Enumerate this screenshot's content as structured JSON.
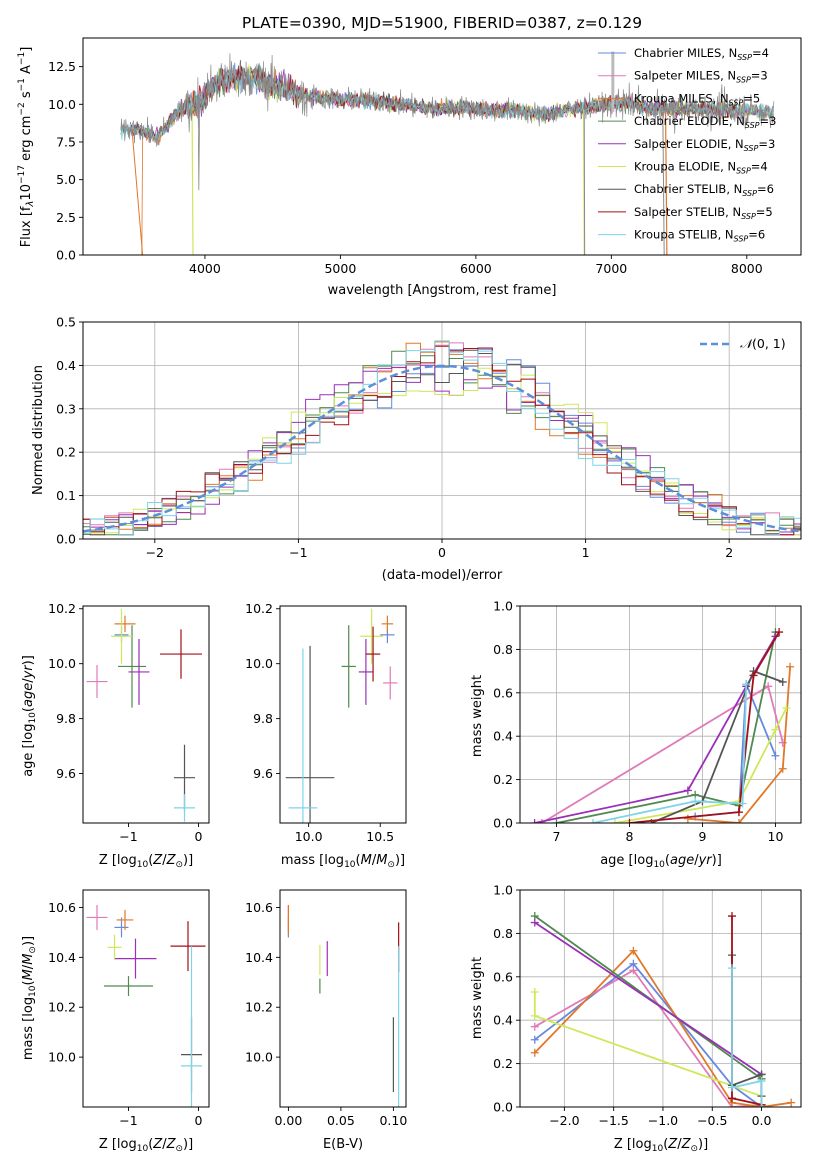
{
  "figure": {
    "colors": {
      "c1": "#6688dd",
      "c2": "#e07ab8",
      "c3": "#e0782a",
      "c4": "#4f8a4f",
      "c5": "#9a30b8",
      "c6": "#cde85a",
      "c7": "#555555",
      "c8": "#a01018",
      "c9": "#7ed4e6",
      "normal": "#5b8fd9",
      "grid": "#b0b0b0"
    }
  },
  "chart_data": [
    {
      "id": "spectrum",
      "type": "line",
      "title": "PLATE=0390, MJD=51900, FIBERID=0387, z=0.129",
      "xlabel": "wavelength [Angstrom, rest frame]",
      "ylabel": "Flux [f_λ 10^-17 erg cm^-2 s^-1 A^-1]",
      "xlim": [
        3100,
        8400
      ],
      "ylim": [
        0,
        14.4
      ],
      "xticks": [
        4000,
        5000,
        6000,
        7000,
        8000
      ],
      "yticks": [
        0.0,
        2.5,
        5.0,
        7.5,
        10.0,
        12.5
      ],
      "grid": false,
      "legend_position": "top-right",
      "legend": [
        {
          "label": "Chabrier MILES, N_SSP=4",
          "color": "c1"
        },
        {
          "label": "Salpeter MILES, N_SSP=3",
          "color": "c2"
        },
        {
          "label": "Kroupa MILES, N_SSP=5",
          "color": "c3"
        },
        {
          "label": "Chabrier ELODIE, N_SSP=3",
          "color": "c4"
        },
        {
          "label": "Salpeter ELODIE, N_SSP=3",
          "color": "c5"
        },
        {
          "label": "Kroupa ELODIE, N_SSP=4",
          "color": "c6"
        },
        {
          "label": "Chabrier STELIB, N_SSP=6",
          "color": "c7"
        },
        {
          "label": "Salpeter STELIB, N_SSP=5",
          "color": "c8"
        },
        {
          "label": "Kroupa STELIB, N_SSP=6",
          "color": "c9"
        }
      ],
      "continuum": [
        [
          3380,
          8.2
        ],
        [
          3500,
          8.4
        ],
        [
          3650,
          7.8
        ],
        [
          3800,
          9.5
        ],
        [
          3950,
          10.2
        ],
        [
          4100,
          11.5
        ],
        [
          4300,
          11.9
        ],
        [
          4500,
          11.3
        ],
        [
          4700,
          10.7
        ],
        [
          4900,
          10.4
        ],
        [
          5100,
          10.3
        ],
        [
          5300,
          10.2
        ],
        [
          5500,
          9.9
        ],
        [
          5700,
          9.7
        ],
        [
          5900,
          9.8
        ],
        [
          6100,
          9.6
        ],
        [
          6300,
          9.6
        ],
        [
          6500,
          9.3
        ],
        [
          6700,
          9.7
        ],
        [
          6900,
          9.9
        ],
        [
          7100,
          10.1
        ],
        [
          7300,
          9.7
        ],
        [
          7600,
          9.7
        ],
        [
          8000,
          9.6
        ],
        [
          8200,
          9.5
        ]
      ]
    },
    {
      "id": "residuals",
      "type": "line",
      "xlabel": "(data-model)/error",
      "ylabel": "Normed distribution",
      "xlim": [
        -2.5,
        2.5
      ],
      "ylim": [
        0,
        0.5
      ],
      "xticks": [
        -2,
        -1,
        0,
        1,
        2
      ],
      "yticks": [
        0.0,
        0.1,
        0.2,
        0.3,
        0.4,
        0.5
      ],
      "grid": true,
      "legend_position": "top-right",
      "legend": [
        {
          "label": "N(0,1)",
          "color": "normal"
        }
      ],
      "bin_width": 0.1,
      "note": "nine step histograms, one per fit, approximating a standard normal"
    },
    {
      "id": "age_vs_Z",
      "type": "scatter",
      "xlabel": "Z [log10(Z/Z⊙)]",
      "ylabel": "age [log10(age/yr)]",
      "xlim": [
        -1.65,
        0.15
      ],
      "ylim": [
        9.42,
        10.21
      ],
      "xticks": [
        -1,
        0
      ],
      "yticks": [
        9.6,
        9.8,
        10.0,
        10.2
      ],
      "grid": false,
      "points": [
        {
          "color": "c1",
          "x": -1.1,
          "xerr": 0.1,
          "y": 10.105,
          "yerr": 0.03
        },
        {
          "color": "c2",
          "x": -1.45,
          "xerr": 0.15,
          "y": 9.935,
          "yerr": 0.06
        },
        {
          "color": "c3",
          "x": -1.05,
          "xerr": 0.15,
          "y": 10.145,
          "yerr": 0.03
        },
        {
          "color": "c4",
          "x": -0.95,
          "xerr": 0.2,
          "y": 9.99,
          "yerr": 0.15
        },
        {
          "color": "c5",
          "x": -0.85,
          "xerr": 0.15,
          "y": 9.97,
          "yerr": 0.12
        },
        {
          "color": "c6",
          "x": -1.1,
          "xerr": 0.15,
          "y": 10.1,
          "yerr": 0.1
        },
        {
          "color": "c7",
          "x": -0.2,
          "xerr": 0.15,
          "y": 9.585,
          "yerr": 0.12
        },
        {
          "color": "c8",
          "x": -0.25,
          "xerr": 0.3,
          "y": 10.035,
          "yerr": 0.09
        },
        {
          "color": "c9",
          "x": -0.2,
          "xerr": 0.15,
          "y": 9.475,
          "yerr": 0.05
        }
      ]
    },
    {
      "id": "age_vs_mass",
      "type": "scatter",
      "xlabel": "mass [log10(M/M⊙)]",
      "ylabel": "",
      "xlim": [
        9.8,
        10.68
      ],
      "ylim": [
        9.42,
        10.21
      ],
      "xticks": [
        10.0,
        10.5
      ],
      "yticks": [
        9.6,
        9.8,
        10.0,
        10.2
      ],
      "grid": false,
      "points": [
        {
          "color": "c1",
          "x": 10.55,
          "xerr": 0.05,
          "y": 10.105,
          "yerr": 0.03
        },
        {
          "color": "c2",
          "x": 10.57,
          "xerr": 0.05,
          "y": 9.93,
          "yerr": 0.06
        },
        {
          "color": "c3",
          "x": 10.55,
          "xerr": 0.04,
          "y": 10.145,
          "yerr": 0.03
        },
        {
          "color": "c4",
          "x": 10.28,
          "xerr": 0.05,
          "y": 9.99,
          "yerr": 0.15
        },
        {
          "color": "c5",
          "x": 10.4,
          "xerr": 0.05,
          "y": 9.97,
          "yerr": 0.12
        },
        {
          "color": "c6",
          "x": 10.44,
          "xerr": 0.08,
          "y": 10.1,
          "yerr": 0.1
        },
        {
          "color": "c7",
          "x": 10.01,
          "xerr": 0.17,
          "y": 9.585,
          "yerr": 0.48
        },
        {
          "color": "c8",
          "x": 10.45,
          "xerr": 0.05,
          "y": 10.035,
          "yerr": 0.1
        },
        {
          "color": "c9",
          "x": 9.96,
          "xerr": 0.1,
          "y": 9.475,
          "yerr": 0.58
        }
      ]
    },
    {
      "id": "weight_vs_age",
      "type": "line",
      "xlabel": "age [log10(age/yr)]",
      "ylabel": "mass weight",
      "xlim": [
        6.5,
        10.35
      ],
      "ylim": [
        0,
        1
      ],
      "xticks": [
        7,
        8,
        9,
        10
      ],
      "yticks": [
        0.0,
        0.2,
        0.4,
        0.6,
        0.8,
        1.0
      ],
      "grid": true,
      "series": [
        {
          "color": "c1",
          "points": [
            [
              8.9,
              0.03
            ],
            [
              9.5,
              0.05
            ],
            [
              9.6,
              0.64
            ],
            [
              10.0,
              0.31
            ]
          ]
        },
        {
          "color": "c2",
          "points": [
            [
              6.8,
              0.0
            ],
            [
              9.9,
              0.63
            ],
            [
              10.1,
              0.37
            ]
          ]
        },
        {
          "color": "c3",
          "points": [
            [
              8.8,
              0.02
            ],
            [
              9.5,
              0.0
            ],
            [
              10.1,
              0.25
            ],
            [
              10.2,
              0.72
            ]
          ]
        },
        {
          "color": "c4",
          "points": [
            [
              7.0,
              0.0
            ],
            [
              8.9,
              0.13
            ],
            [
              9.5,
              0.08
            ],
            [
              10.0,
              0.88
            ]
          ]
        },
        {
          "color": "c5",
          "points": [
            [
              6.7,
              0.0
            ],
            [
              8.8,
              0.15
            ],
            [
              9.6,
              0.63
            ],
            [
              10.0,
              0.86
            ]
          ]
        },
        {
          "color": "c6",
          "points": [
            [
              7.8,
              0.0
            ],
            [
              9.5,
              0.1
            ],
            [
              10.0,
              0.43
            ],
            [
              10.15,
              0.53
            ]
          ]
        },
        {
          "color": "c7",
          "points": [
            [
              8.3,
              0.0
            ],
            [
              9.0,
              0.1
            ],
            [
              9.7,
              0.7
            ],
            [
              10.1,
              0.65
            ]
          ]
        },
        {
          "color": "c8",
          "points": [
            [
              8.0,
              0.0
            ],
            [
              9.5,
              0.05
            ],
            [
              9.7,
              0.68
            ],
            [
              10.05,
              0.88
            ]
          ]
        },
        {
          "color": "c9",
          "points": [
            [
              7.5,
              0.0
            ],
            [
              8.9,
              0.1
            ],
            [
              9.55,
              0.09
            ],
            [
              9.6,
              0.64
            ]
          ]
        }
      ]
    },
    {
      "id": "mass_vs_Z",
      "type": "scatter",
      "xlabel": "Z [log10(Z/Z⊙)]",
      "ylabel": "mass [log10(M/M⊙)]",
      "xlim": [
        -1.65,
        0.15
      ],
      "ylim": [
        9.8,
        10.67
      ],
      "xticks": [
        -1,
        0
      ],
      "yticks": [
        10.0,
        10.2,
        10.4,
        10.6
      ],
      "grid": false,
      "points": [
        {
          "color": "c1",
          "x": -1.1,
          "xerr": 0.1,
          "y": 10.52,
          "yerr": 0.04
        },
        {
          "color": "c2",
          "x": -1.45,
          "xerr": 0.15,
          "y": 10.56,
          "yerr": 0.05
        },
        {
          "color": "c3",
          "x": -1.05,
          "xerr": 0.12,
          "y": 10.55,
          "yerr": 0.04
        },
        {
          "color": "c4",
          "x": -1.0,
          "xerr": 0.35,
          "y": 10.285,
          "yerr": 0.04
        },
        {
          "color": "c5",
          "x": -0.9,
          "xerr": 0.3,
          "y": 10.395,
          "yerr": 0.08
        },
        {
          "color": "c6",
          "x": -1.2,
          "xerr": 0.1,
          "y": 10.44,
          "yerr": 0.05
        },
        {
          "color": "c7",
          "x": -0.1,
          "xerr": 0.15,
          "y": 10.01,
          "yerr": 0.15
        },
        {
          "color": "c8",
          "x": -0.15,
          "xerr": 0.25,
          "y": 10.445,
          "yerr": 0.1
        },
        {
          "color": "c9",
          "x": -0.1,
          "xerr": 0.15,
          "y": 9.965,
          "yerr": 0.48
        }
      ]
    },
    {
      "id": "mass_vs_ebv",
      "type": "scatter",
      "xlabel": "E(B-V)",
      "ylabel": "",
      "xlim": [
        -0.008,
        0.112
      ],
      "ylim": [
        9.8,
        10.67
      ],
      "xticks": [
        0.0,
        0.05,
        0.1
      ],
      "yticks": [
        10.0,
        10.2,
        10.4,
        10.6
      ],
      "grid": false,
      "points": [
        {
          "color": "c1",
          "x": 0.0,
          "xerr": 0,
          "y": 10.52,
          "yerr": 0.04
        },
        {
          "color": "c2",
          "x": 0.0,
          "xerr": 0,
          "y": 10.56,
          "yerr": 0.05
        },
        {
          "color": "c3",
          "x": 0.0,
          "xerr": 0,
          "y": 10.55,
          "yerr": 0.06
        },
        {
          "color": "c4",
          "x": 0.03,
          "xerr": 0,
          "y": 10.285,
          "yerr": 0.03
        },
        {
          "color": "c5",
          "x": 0.037,
          "xerr": 0,
          "y": 10.395,
          "yerr": 0.07
        },
        {
          "color": "c6",
          "x": 0.03,
          "xerr": 0,
          "y": 10.39,
          "yerr": 0.06
        },
        {
          "color": "c7",
          "x": 0.1,
          "xerr": 0,
          "y": 10.01,
          "yerr": 0.15
        },
        {
          "color": "c8",
          "x": 0.105,
          "xerr": 0,
          "y": 10.44,
          "yerr": 0.1
        },
        {
          "color": "c9",
          "x": 0.105,
          "xerr": 0,
          "y": 9.965,
          "yerr": 0.48
        }
      ]
    },
    {
      "id": "weight_vs_Z",
      "type": "line",
      "xlabel": "Z [log10(Z/Z⊙)]",
      "ylabel": "mass weight",
      "xlim": [
        -2.45,
        0.4
      ],
      "ylim": [
        0,
        1
      ],
      "xticks": [
        -2.0,
        -1.5,
        -1.0,
        -0.5,
        0.0
      ],
      "yticks": [
        0.0,
        0.2,
        0.4,
        0.6,
        0.8,
        1.0
      ],
      "grid": true,
      "series": [
        {
          "color": "c1",
          "points": [
            [
              -2.3,
              0.31
            ],
            [
              -1.3,
              0.66
            ],
            [
              -0.3,
              0.1
            ],
            [
              0.0,
              0.0
            ]
          ]
        },
        {
          "color": "c2",
          "points": [
            [
              -2.3,
              0.37
            ],
            [
              -1.3,
              0.63
            ],
            [
              -0.3,
              0.0
            ],
            [
              0.0,
              0.01
            ]
          ]
        },
        {
          "color": "c3",
          "points": [
            [
              -2.3,
              0.25
            ],
            [
              -1.3,
              0.72
            ],
            [
              -0.3,
              0.02
            ],
            [
              0.0,
              0.0
            ],
            [
              0.3,
              0.02
            ]
          ]
        },
        {
          "color": "c4",
          "points": [
            [
              -2.3,
              0.88
            ],
            [
              0.0,
              0.13
            ],
            [
              0.0,
              0.0
            ]
          ]
        },
        {
          "color": "c5",
          "points": [
            [
              -2.3,
              0.85
            ],
            [
              0.0,
              0.15
            ],
            [
              0.0,
              0.0
            ]
          ]
        },
        {
          "color": "c6",
          "points": [
            [
              -2.3,
              0.53
            ],
            [
              -2.3,
              0.42
            ],
            [
              0.0,
              0.05
            ],
            [
              0.0,
              0.0
            ]
          ]
        },
        {
          "color": "c7",
          "points": [
            [
              -0.3,
              0.7
            ],
            [
              -0.3,
              0.1
            ],
            [
              0.0,
              0.15
            ],
            [
              0.0,
              0.05
            ]
          ]
        },
        {
          "color": "c8",
          "points": [
            [
              -0.3,
              0.88
            ],
            [
              -0.3,
              0.04
            ],
            [
              0.0,
              0.01
            ]
          ]
        },
        {
          "color": "c9",
          "points": [
            [
              -0.3,
              0.64
            ],
            [
              -0.3,
              0.09
            ],
            [
              0.0,
              0.12
            ],
            [
              0.0,
              0.0
            ]
          ]
        }
      ]
    }
  ]
}
